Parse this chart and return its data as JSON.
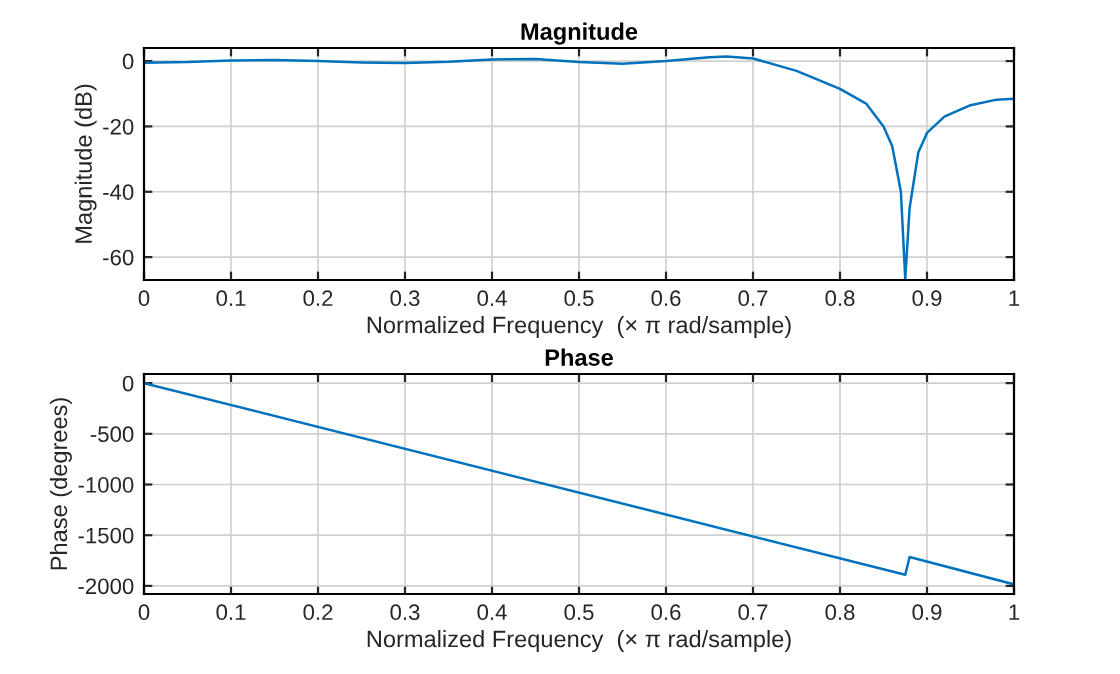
{
  "chart_data": [
    {
      "type": "line",
      "title": "Magnitude",
      "xlabel": "Normalized Frequency  (× π rad/sample)",
      "ylabel": "Magnitude (dB)",
      "x": [
        0,
        0.05,
        0.1,
        0.15,
        0.2,
        0.25,
        0.3,
        0.35,
        0.4,
        0.45,
        0.5,
        0.55,
        0.6,
        0.65,
        0.67,
        0.7,
        0.75,
        0.8,
        0.83,
        0.85,
        0.86,
        0.87,
        0.875,
        0.88,
        0.89,
        0.9,
        0.92,
        0.95,
        0.98,
        1
      ],
      "series": [
        {
          "color": "#0072bd",
          "values": [
            -0.5,
            -0.3,
            0.2,
            0.3,
            0,
            -0.4,
            -0.6,
            -0.2,
            0.5,
            0.6,
            -0.3,
            -0.8,
            0,
            1.2,
            1.4,
            0.8,
            -3,
            -8.5,
            -13,
            -20,
            -26,
            -40,
            -66.7,
            -45,
            -28,
            -22,
            -17,
            -13.5,
            -11.8,
            -11.5
          ]
        }
      ],
      "xlim": [
        0,
        1
      ],
      "xticks": [
        0,
        0.1,
        0.2,
        0.3,
        0.4,
        0.5,
        0.6,
        0.7,
        0.8,
        0.9,
        1
      ],
      "ylim": [
        -67,
        4
      ],
      "yticks": [
        -60,
        -40,
        -20,
        0
      ],
      "grid": true,
      "legend": false
    },
    {
      "type": "line",
      "title": "Phase",
      "xlabel": "Normalized Frequency  (× π rad/sample)",
      "ylabel": "Phase (degrees)",
      "x": [
        0,
        0.875,
        0.88,
        1
      ],
      "series": [
        {
          "color": "#0072bd",
          "values": [
            0,
            -1890,
            -1715,
            -1985
          ]
        }
      ],
      "xlim": [
        0,
        1
      ],
      "xticks": [
        0,
        0.1,
        0.2,
        0.3,
        0.4,
        0.5,
        0.6,
        0.7,
        0.8,
        0.9,
        1
      ],
      "ylim": [
        -2080,
        90
      ],
      "yticks": [
        -2000,
        -1500,
        -1000,
        -500,
        0
      ],
      "grid": true,
      "legend": false
    }
  ]
}
